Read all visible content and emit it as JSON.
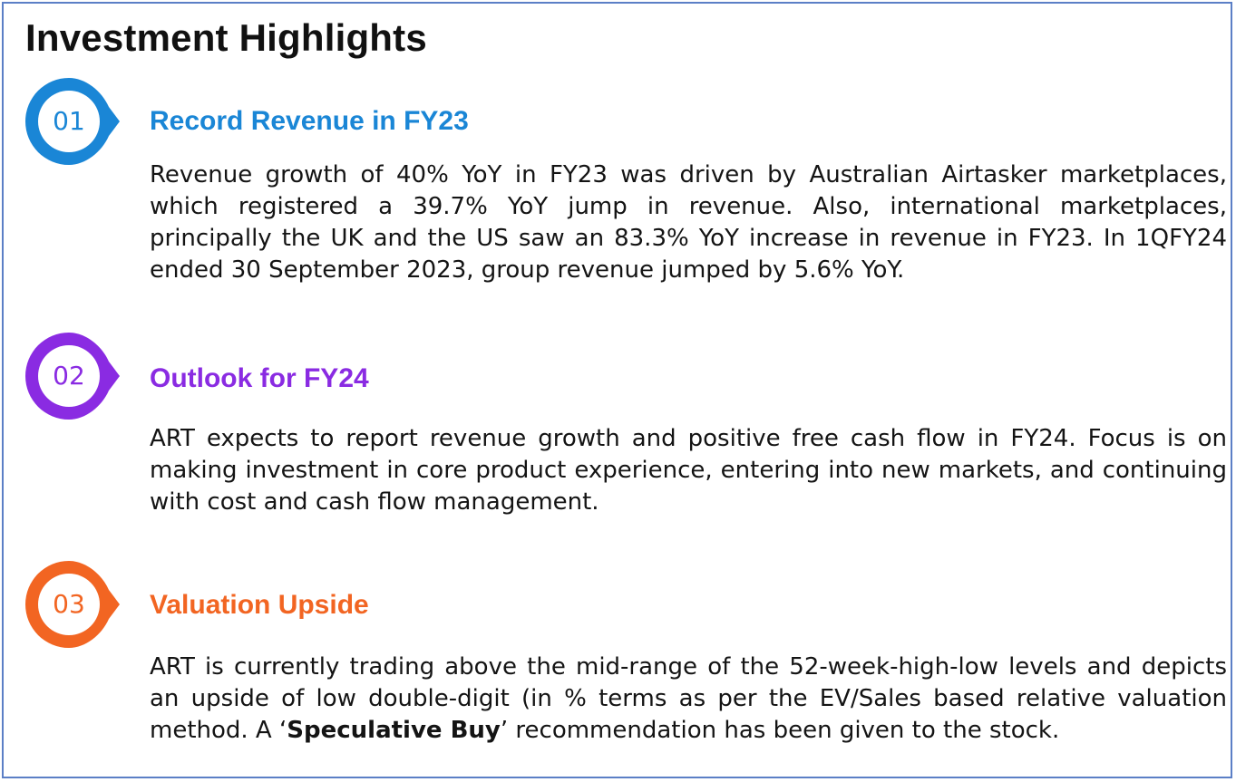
{
  "title": "Investment Highlights",
  "highlights": [
    {
      "number": "01",
      "heading": "Record Revenue in FY23",
      "color": "#1a86d6",
      "body": "Revenue growth of 40% YoY in FY23 was driven by Australian Airtasker marketplaces, which registered a 39.7% YoY jump in revenue. Also, international marketplaces, principally the UK and the US saw an 83.3% YoY increase in revenue in FY23. In 1QFY24 ended 30 September 2023, group revenue jumped by 5.6% YoY."
    },
    {
      "number": "02",
      "heading": "Outlook for FY24",
      "color": "#8a2be2",
      "body": "ART expects to report revenue growth and positive free cash flow in FY24. Focus is on making investment in core product experience, entering into new markets, and continuing with cost and cash flow management."
    },
    {
      "number": "03",
      "heading": "Valuation Upside",
      "color": "#f26522",
      "body_before": "ART is currently trading above the mid-range of the 52-week-high-low levels and depicts an upside of low double-digit (in % terms as per the EV/Sales based relative valuation method. A ‘",
      "body_bold": "Speculative Buy",
      "body_after": "’ recommendation has been given to the stock."
    }
  ]
}
